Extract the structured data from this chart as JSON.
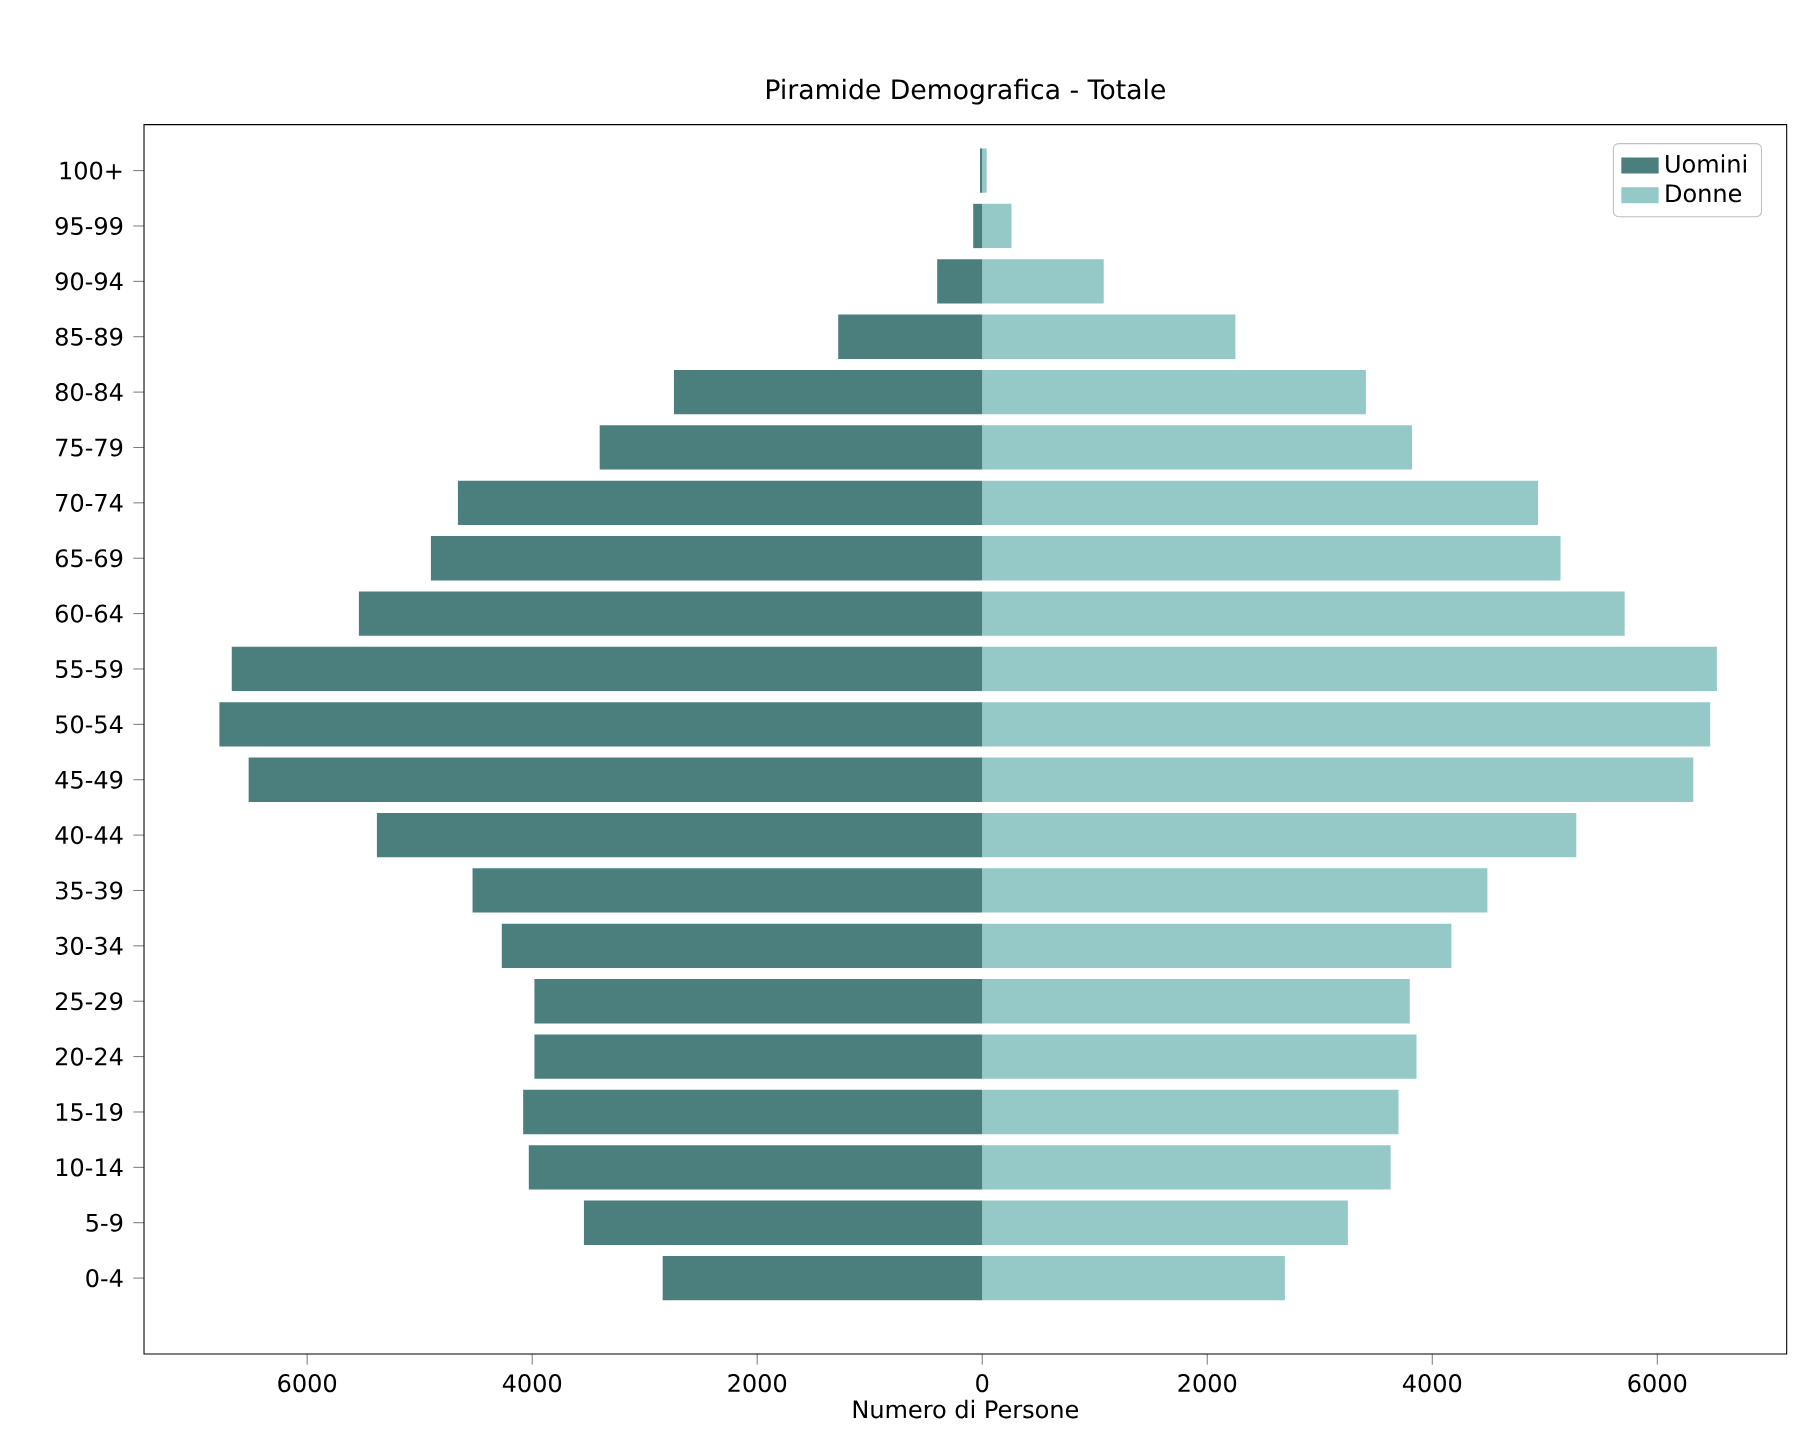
{
  "chart_data": {
    "type": "bar",
    "orientation": "horizontal",
    "title": "Piramide Demografica - Totale",
    "xlabel": "Numero di Persone",
    "categories": [
      "100+",
      "95-99",
      "90-94",
      "85-89",
      "80-84",
      "75-79",
      "70-74",
      "65-69",
      "60-64",
      "55-59",
      "50-54",
      "45-49",
      "40-44",
      "35-39",
      "30-34",
      "25-29",
      "20-24",
      "15-19",
      "10-14",
      "5-9",
      "0-4"
    ],
    "series": [
      {
        "name": "Uomini",
        "color": "#4a7f7e",
        "values": [
          -20,
          -80,
          -400,
          -1280,
          -2740,
          -3400,
          -4660,
          -4900,
          -5540,
          -6670,
          -6780,
          -6520,
          -5380,
          -4530,
          -4270,
          -3980,
          -3980,
          -4080,
          -4030,
          -3540,
          -2840
        ]
      },
      {
        "name": "Donne",
        "color": "#95c9c8",
        "values": [
          40,
          260,
          1080,
          2250,
          3410,
          3820,
          4940,
          5140,
          5710,
          6530,
          6470,
          6320,
          5280,
          4490,
          4170,
          3800,
          3860,
          3700,
          3630,
          3250,
          2690
        ]
      }
    ],
    "xlim": [
      -7450,
      7150
    ],
    "xticks": [
      {
        "value": -6000,
        "label": "6000"
      },
      {
        "value": -4000,
        "label": "4000"
      },
      {
        "value": -2000,
        "label": "2000"
      },
      0,
      2000,
      4000,
      6000
    ],
    "legend": "top right",
    "grid": false,
    "stacked": true
  }
}
